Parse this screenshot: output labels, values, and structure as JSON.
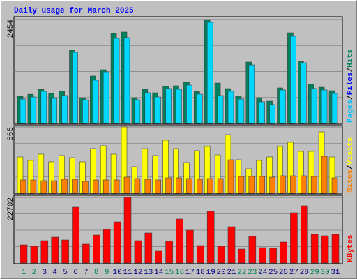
{
  "title": "Daily usage for March 2025",
  "separator": "/",
  "chart_data": [
    {
      "type": "bar",
      "ylim": [
        0,
        2454
      ],
      "yticks": [
        2454
      ],
      "legend": [
        {
          "name": "Pages",
          "color": "#00C0FF"
        },
        {
          "name": "Files",
          "color": "#0000FF"
        },
        {
          "name": "Hits",
          "color": "#00805C"
        }
      ],
      "series": [
        {
          "color": "#00805C",
          "values": [
            642,
            689,
            804,
            708,
            757,
            1729,
            609,
            1120,
            1268,
            2125,
            2158,
            609,
            804,
            724,
            873,
            889,
            972,
            757,
            2454,
            955,
            823,
            642,
            1449,
            609,
            527,
            840,
            2141,
            1466,
            922,
            856,
            774
          ]
        },
        {
          "color": "#00D8FF",
          "values": [
            576,
            626,
            758,
            593,
            659,
            1680,
            560,
            1021,
            1219,
            2009,
            2026,
            560,
            725,
            626,
            824,
            807,
            906,
            692,
            2388,
            659,
            758,
            576,
            1383,
            511,
            445,
            791,
            2059,
            1433,
            824,
            791,
            708
          ]
        }
      ]
    },
    {
      "type": "bar",
      "ylim": [
        0,
        665
      ],
      "yticks": [
        665
      ],
      "legend": [
        {
          "name": "Sites",
          "color": "#FF8000"
        },
        {
          "name": "Visits",
          "color": "#FFFF00"
        }
      ],
      "series": [
        {
          "color": "#FFFF00",
          "values": [
            364,
            329,
            392,
            315,
            378,
            357,
            315,
            448,
            476,
            392,
            665,
            266,
            448,
            378,
            532,
            448,
            308,
            427,
            469,
            385,
            588,
            336,
            245,
            329,
            364,
            469,
            511,
            420,
            420,
            616,
            364
          ]
        },
        {
          "color": "#FF8000",
          "values": [
            133,
            133,
            126,
            126,
            140,
            140,
            119,
            133,
            133,
            133,
            161,
            147,
            140,
            133,
            154,
            154,
            147,
            140,
            147,
            147,
            336,
            168,
            168,
            168,
            161,
            175,
            175,
            175,
            168,
            371,
            154
          ]
        }
      ]
    },
    {
      "type": "bar",
      "ylim": [
        0,
        22702
      ],
      "yticks": [
        22702
      ],
      "legend": [
        {
          "name": "KBytes",
          "color": "#FF0000"
        }
      ],
      "categories": [
        "1",
        "2",
        "3",
        "4",
        "5",
        "6",
        "7",
        "8",
        "9",
        "10",
        "11",
        "12",
        "13",
        "14",
        "15",
        "16",
        "17",
        "18",
        "19",
        "20",
        "21",
        "22",
        "23",
        "24",
        "25",
        "26",
        "27",
        "28",
        "29",
        "30",
        "31"
      ],
      "category_colors": [
        "#00805C",
        "#00805C",
        "#000080",
        "#000080",
        "#000080",
        "#000080",
        "#000080",
        "#00805C",
        "#00805C",
        "#000080",
        "#000080",
        "#000080",
        "#000080",
        "#000080",
        "#00805C",
        "#00805C",
        "#000080",
        "#000080",
        "#000080",
        "#000080",
        "#000080",
        "#00805C",
        "#00805C",
        "#000080",
        "#000080",
        "#000080",
        "#000080",
        "#000080",
        "#00805C",
        "#00805C",
        "#000080"
      ],
      "series": [
        {
          "color": "#FF0000",
          "values": [
            6279,
            5796,
            7728,
            8936,
            7970,
            19321,
            6521,
            9661,
            11593,
            14249,
            22702,
            7728,
            10385,
            4106,
            7487,
            15215,
            11351,
            6038,
            17872,
            5796,
            12558,
            4830,
            9177,
            5313,
            5072,
            7245,
            17389,
            19804,
            9902,
            9419,
            9902
          ]
        }
      ]
    }
  ]
}
